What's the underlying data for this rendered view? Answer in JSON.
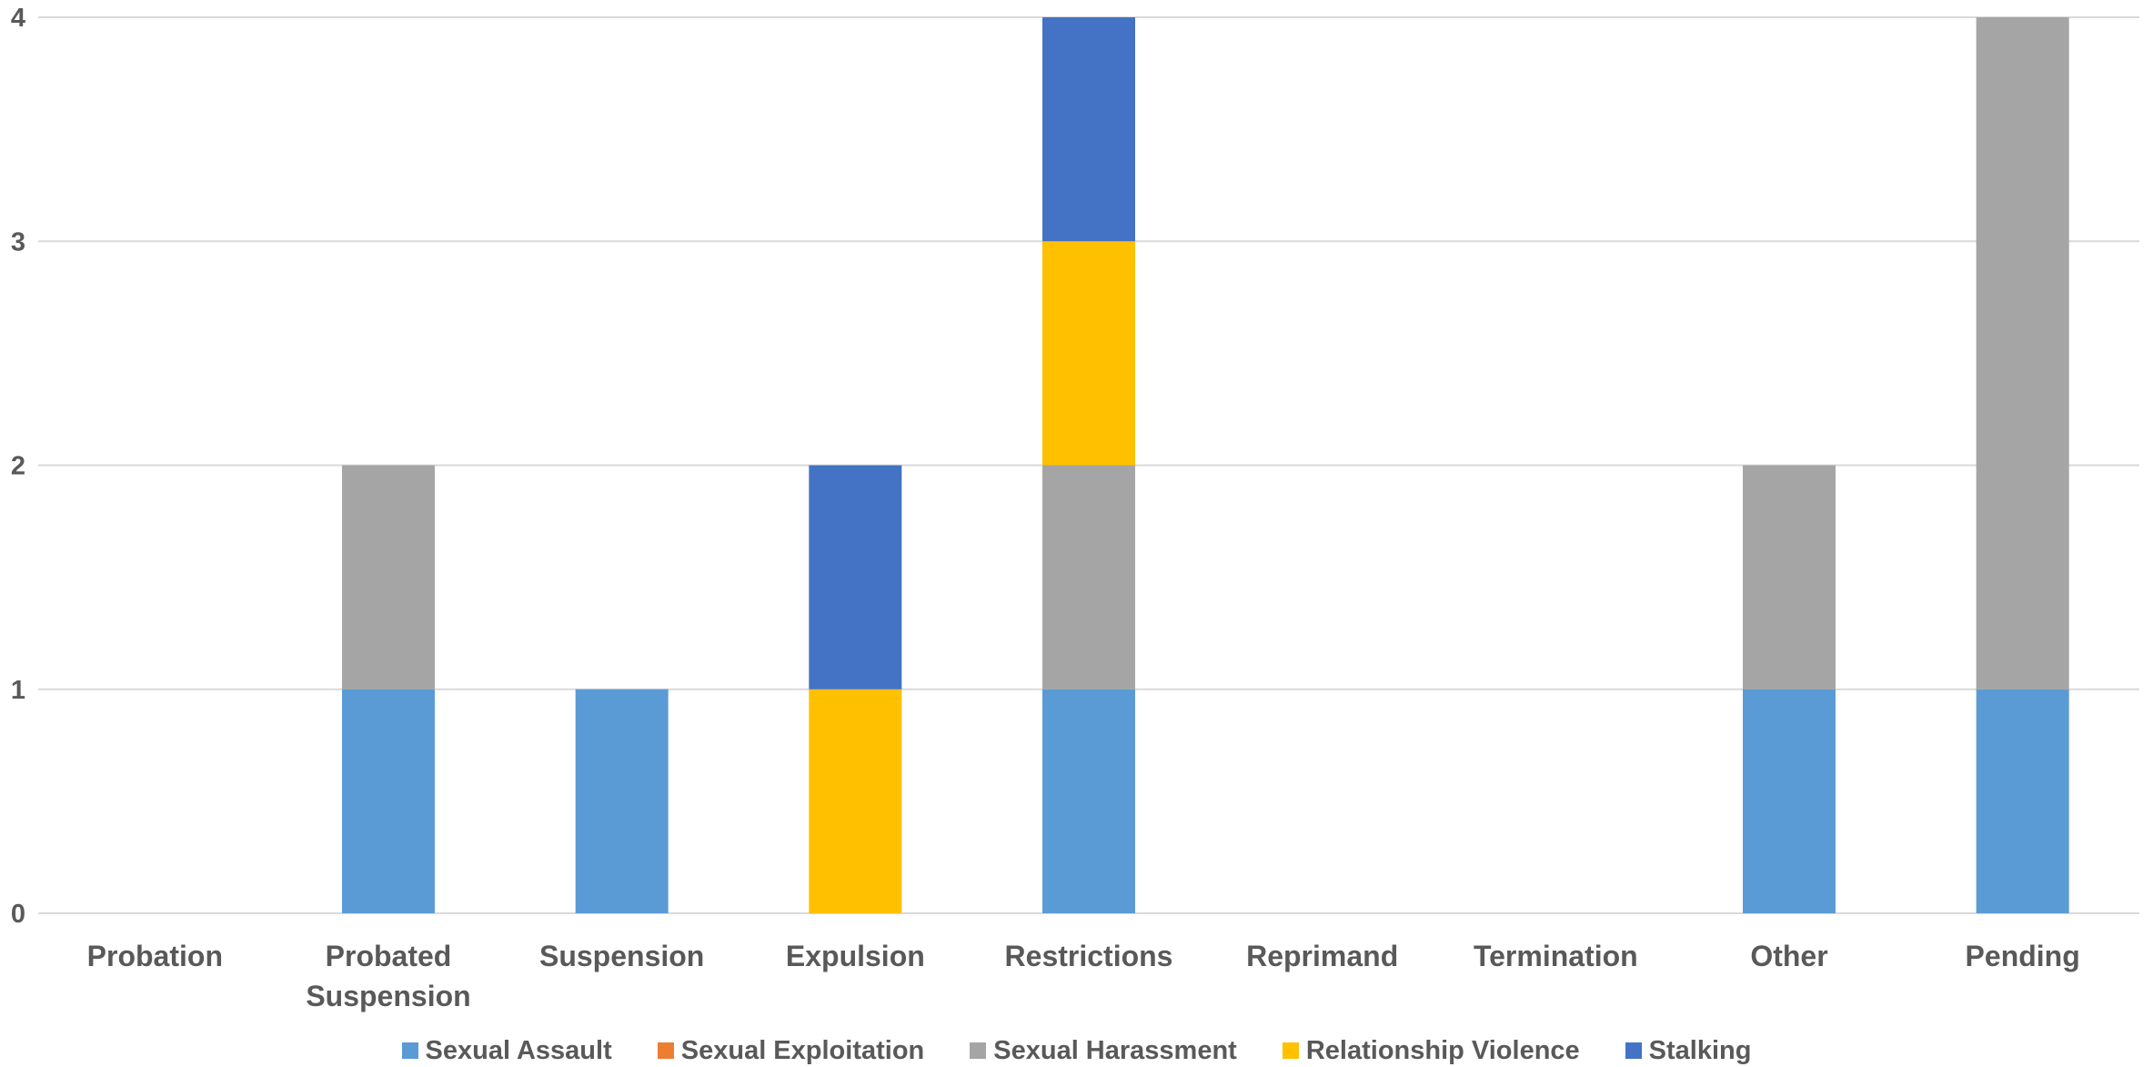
{
  "chart_data": {
    "type": "bar",
    "stacked": true,
    "title": "",
    "xlabel": "",
    "ylabel": "",
    "ylim": [
      0,
      4
    ],
    "yticks": [
      0,
      1,
      2,
      3,
      4
    ],
    "grid": true,
    "legend_position": "bottom",
    "categories": [
      "Probation",
      "Probated\nSuspension",
      "Suspension",
      "Expulsion",
      "Restrictions",
      "Reprimand",
      "Termination",
      "Other",
      "Pending"
    ],
    "series": [
      {
        "name": "Sexual Assault",
        "color": "#5B9BD5",
        "values": [
          0,
          1,
          1,
          0,
          1,
          0,
          0,
          1,
          1
        ]
      },
      {
        "name": "Sexual Exploitation",
        "color": "#ED7D31",
        "values": [
          0,
          0,
          0,
          0,
          0,
          0,
          0,
          0,
          0
        ]
      },
      {
        "name": "Sexual Harassment",
        "color": "#A5A5A5",
        "values": [
          0,
          1,
          0,
          0,
          1,
          0,
          0,
          1,
          3
        ]
      },
      {
        "name": "Relationship Violence",
        "color": "#FFC000",
        "values": [
          0,
          0,
          0,
          1,
          1,
          0,
          0,
          0,
          0
        ]
      },
      {
        "name": "Stalking",
        "color": "#4472C4",
        "values": [
          0,
          0,
          0,
          1,
          1,
          0,
          0,
          0,
          0
        ]
      }
    ]
  }
}
